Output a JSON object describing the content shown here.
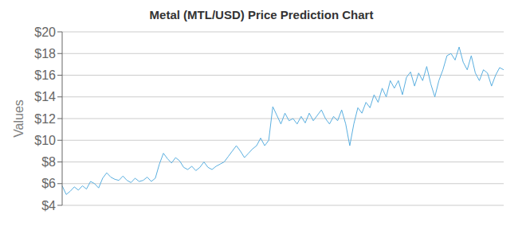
{
  "chart_data": {
    "type": "line",
    "title": "Metal (MTL/USD) Price Prediction Chart",
    "ylabel": "Values",
    "color": "#5aafe0",
    "grid": true,
    "tick_labels": "y",
    "ylim": [
      4,
      20
    ],
    "yticks": [
      {
        "value": 4,
        "label": "$4"
      },
      {
        "value": 6,
        "label": "$6"
      },
      {
        "value": 8,
        "label": "$8"
      },
      {
        "value": 10,
        "label": "$10"
      },
      {
        "value": 12,
        "label": "$12"
      },
      {
        "value": 14,
        "label": "$14"
      },
      {
        "value": 16,
        "label": "$16"
      },
      {
        "value": 18,
        "label": "$18"
      },
      {
        "value": 20,
        "label": "$20"
      }
    ],
    "values": [
      5.8,
      5.0,
      5.3,
      5.7,
      5.4,
      5.8,
      5.5,
      6.2,
      6.0,
      5.6,
      6.5,
      7.0,
      6.6,
      6.4,
      6.3,
      6.7,
      6.3,
      6.1,
      6.5,
      6.2,
      6.3,
      6.6,
      6.2,
      6.5,
      7.8,
      8.8,
      8.3,
      7.9,
      8.4,
      8.1,
      7.5,
      7.3,
      7.6,
      7.2,
      7.5,
      8.0,
      7.5,
      7.3,
      7.6,
      7.8,
      8.0,
      8.5,
      9.0,
      9.5,
      9.0,
      8.4,
      8.8,
      9.2,
      9.5,
      10.2,
      9.5,
      10.0,
      13.1,
      12.3,
      11.5,
      12.5,
      11.8,
      12.0,
      11.5,
      12.2,
      11.6,
      12.5,
      11.8,
      12.3,
      12.8,
      12.0,
      11.5,
      12.2,
      11.8,
      12.8,
      11.5,
      9.5,
      11.5,
      13.0,
      12.5,
      13.5,
      13.0,
      14.2,
      13.5,
      14.8,
      14.0,
      15.5,
      14.8,
      15.5,
      14.2,
      15.8,
      16.3,
      15.0,
      16.2,
      15.5,
      16.8,
      15.2,
      14.0,
      15.5,
      16.5,
      17.8,
      18.0,
      17.4,
      18.6,
      17.2,
      16.5,
      17.8,
      16.2,
      15.5,
      16.5,
      16.2,
      15.0,
      16.0,
      16.7,
      16.5
    ]
  }
}
